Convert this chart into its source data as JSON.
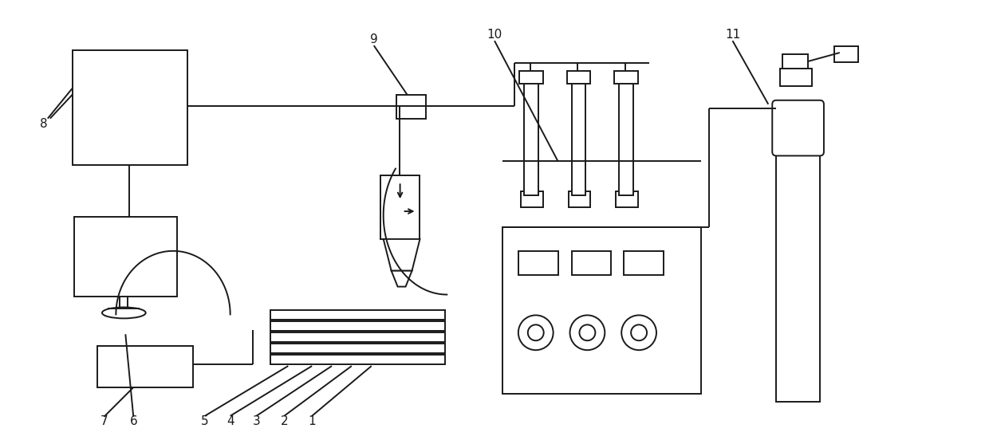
{
  "bg_color": "#ffffff",
  "line_color": "#1a1a1a",
  "line_width": 1.4,
  "fig_width": 12.4,
  "fig_height": 5.57,
  "dpi": 100
}
